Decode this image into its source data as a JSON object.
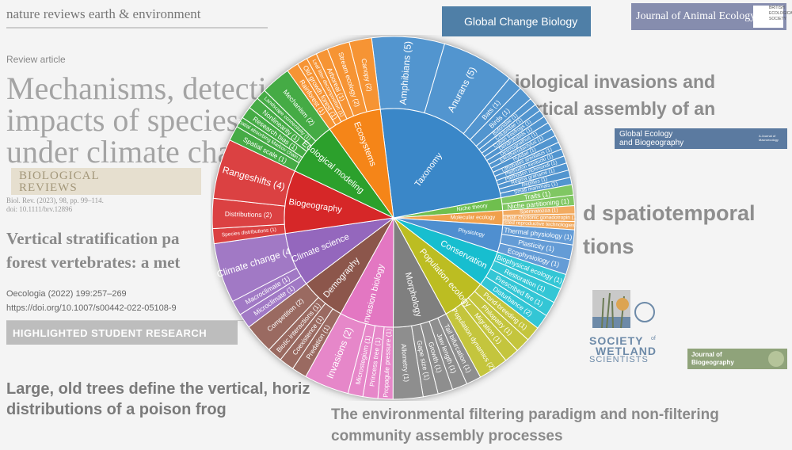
{
  "background": {
    "header_journal": "nature reviews earth & environment",
    "review_label": "Review article",
    "headline_lines": [
      "Mechanisms, detectio",
      "impacts of species r",
      "under climate cha"
    ],
    "bio_reviews_logo": [
      "BIOLOGICAL",
      "REVIEWS"
    ],
    "bio_reviews_citation": [
      "Biol. Rev. (2023), 98, pp. 99–114.",
      "doi: 10.1111/brv.12896"
    ],
    "vertical_title": [
      "Vertical stratification pa",
      "forest vertebrates: a met"
    ],
    "oecologia": [
      "Oecologia (2022) 199:257–269",
      "https://doi.org/10.1007/s00442-022-05108-9"
    ],
    "highlighted_badge": "HIGHLIGHTED STUDENT RESEARCH",
    "frog_title": [
      "Large, old trees define the vertical, horiz",
      "distributions of a poison frog"
    ],
    "gcb_logo": "Global Change Biology",
    "jae_logo": "Journal of Animal Ecology",
    "bes_logo": [
      "BRITISH",
      "ECOLOGICAL",
      "SOCIETY"
    ],
    "invasion_title": [
      "iological invasions and",
      "vertical assembly of an"
    ],
    "geb_logo": [
      "Global Ecology",
      "and Biogeography"
    ],
    "geb_small": "A Journal of Macroecology",
    "spatiotemporal_title": [
      "d spatiotemporal",
      "tions"
    ],
    "sws_logo": [
      "SOCIETY",
      "WETLAND",
      "SCIENTISTS"
    ],
    "sws_of": "of",
    "job_logo": [
      "Journal of",
      "Biogeography"
    ],
    "filter_title": [
      "The environmental filtering paradigm and non-filtering",
      "community assembly processes"
    ]
  },
  "colors": {
    "Taxonomy": "#3a87c8",
    "Ecosystems": "#f58518",
    "Ecological modeling": "#2ca02c",
    "Biogeography": "#d62728",
    "Climate science": "#9467bd",
    "Demography": "#8c564b",
    "Invasion biology": "#e377c2",
    "Morphology": "#7f7f7f",
    "Population ecology": "#bcbd22",
    "Conservation": "#17becf",
    "Physiology": "#4f8fd0",
    "Niche theory": "#6fbf4e",
    "Molecular ecology": "#f0a04c"
  },
  "chart_data": {
    "type": "sunburst",
    "inner": [
      {
        "label": "Taxonomy",
        "value": 18
      },
      {
        "label": "Niche theory",
        "value": 1.4
      },
      {
        "label": "Molecular ecology",
        "value": 1.6
      },
      {
        "label": "Physiology",
        "value": 3
      },
      {
        "label": "Conservation",
        "value": 4
      },
      {
        "label": "Population ecology",
        "value": 5
      },
      {
        "label": "Morphology",
        "value": 6
      },
      {
        "label": "Invasion biology",
        "value": 6
      },
      {
        "label": "Demography",
        "value": 5
      },
      {
        "label": "Climate science",
        "value": 6
      },
      {
        "label": "Biogeography",
        "value": 7
      },
      {
        "label": "Ecological modeling",
        "value": 6
      },
      {
        "label": "Ecosystems",
        "value": 6
      }
    ],
    "outer": [
      {
        "label": "Amphibians (5)",
        "parent": "Taxonomy",
        "value": 5
      },
      {
        "label": "Anurans (5)",
        "parent": "Taxonomy",
        "value": 5
      },
      {
        "label": "Bats (1)",
        "parent": "Taxonomy",
        "value": 1
      },
      {
        "label": "Birds (1)",
        "parent": "Taxonomy",
        "value": 1
      },
      {
        "label": "Bufonidae (1)",
        "parent": "Taxonomy",
        "value": 0.5
      },
      {
        "label": "Colubridae (1)",
        "parent": "Taxonomy",
        "value": 0.5
      },
      {
        "label": "Cuban treefrogs (1)",
        "parent": "Taxonomy",
        "value": 0.5
      },
      {
        "label": "Dendrobatids (1)",
        "parent": "Taxonomy",
        "value": 0.5
      },
      {
        "label": "Desmognathus (1)",
        "parent": "Taxonomy",
        "value": 0.5
      },
      {
        "label": "Eleutherodactylus (1)",
        "parent": "Taxonomy",
        "value": 0.5
      },
      {
        "label": "Hylidae (1)",
        "parent": "Taxonomy",
        "value": 0.5
      },
      {
        "label": "Lithobates areolatus (1)",
        "parent": "Taxonomy",
        "value": 0.5
      },
      {
        "label": "Plethodon kentucki (1)",
        "parent": "Taxonomy",
        "value": 0.5
      },
      {
        "label": "Plethodon richmondi (1)",
        "parent": "Taxonomy",
        "value": 0.5
      },
      {
        "label": "Regina grahamii (1)",
        "parent": "Taxonomy",
        "value": 0.5
      },
      {
        "label": "Reptiles (1)",
        "parent": "Taxonomy",
        "value": 0.5
      },
      {
        "label": "Small mammals (1)",
        "parent": "Taxonomy",
        "value": 0.5
      },
      {
        "label": "Traits (1)",
        "parent": "Niche theory",
        "value": 0.7
      },
      {
        "label": "Niche partitioning (1)",
        "parent": "Niche theory",
        "value": 0.7
      },
      {
        "label": "Spermatozoa (1)",
        "parent": "Molecular ecology",
        "value": 0.55
      },
      {
        "label": "Human chorionic gonadotropin (1)",
        "parent": "Molecular ecology",
        "value": 0.5
      },
      {
        "label": "Assisted reproductive technologies (1)",
        "parent": "Molecular ecology",
        "value": 0.55
      },
      {
        "label": "Thermal physiology (1)",
        "parent": "Physiology",
        "value": 1
      },
      {
        "label": "Plasticity (1)",
        "parent": "Physiology",
        "value": 1
      },
      {
        "label": "Ecophysiology (1)",
        "parent": "Physiology",
        "value": 1
      },
      {
        "label": "Biophysical ecology (1)",
        "parent": "Conservation",
        "value": 1
      },
      {
        "label": "Restoration (1)",
        "parent": "Conservation",
        "value": 1
      },
      {
        "label": "Prescribed fire (1)",
        "parent": "Conservation",
        "value": 1
      },
      {
        "label": "Disturbance (2)",
        "parent": "Conservation",
        "value": 1
      },
      {
        "label": "Pond-breeding (1)",
        "parent": "Population ecology",
        "value": 1
      },
      {
        "label": "Philopatry (1)",
        "parent": "Population ecology",
        "value": 1
      },
      {
        "label": "Migration (1)",
        "parent": "Population ecology",
        "value": 1
      },
      {
        "label": "Population dynamics (2)",
        "parent": "Population ecology",
        "value": 2
      },
      {
        "label": "Tail bifurcation (1)",
        "parent": "Morphology",
        "value": 1
      },
      {
        "label": "Jaw length (1)",
        "parent": "Morphology",
        "value": 1
      },
      {
        "label": "Growth (1)",
        "parent": "Morphology",
        "value": 1
      },
      {
        "label": "Gape size (1)",
        "parent": "Morphology",
        "value": 1
      },
      {
        "label": "Allometry (1)",
        "parent": "Morphology",
        "value": 2
      },
      {
        "label": "Propagule pressure (1)",
        "parent": "Invasion biology",
        "value": 1
      },
      {
        "label": "Princess tree (1)",
        "parent": "Invasion biology",
        "value": 1
      },
      {
        "label": "Microstegium (1)",
        "parent": "Invasion biology",
        "value": 1
      },
      {
        "label": "Invasions (2)",
        "parent": "Invasion biology",
        "value": 3
      },
      {
        "label": "Predation (1)",
        "parent": "Demography",
        "value": 1
      },
      {
        "label": "Coexistence (1)",
        "parent": "Demography",
        "value": 1
      },
      {
        "label": "Biotic interactions (1)",
        "parent": "Demography",
        "value": 1
      },
      {
        "label": "Competition (2)",
        "parent": "Demography",
        "value": 2
      },
      {
        "label": "Microclimate (1)",
        "parent": "Climate science",
        "value": 1
      },
      {
        "label": "Macroclimate (1)",
        "parent": "Climate science",
        "value": 1
      },
      {
        "label": "Climate change (4)",
        "parent": "Climate science",
        "value": 4
      },
      {
        "label": "Species distributions (1)",
        "parent": "Biogeography",
        "value": 1
      },
      {
        "label": "Distributions (2)",
        "parent": "Biogeography",
        "value": 2
      },
      {
        "label": "Rangeshifts (4)",
        "parent": "Biogeography",
        "value": 4
      },
      {
        "label": "Spatial scale (1)",
        "parent": "Ecological modeling",
        "value": 1
      },
      {
        "label": "Spatial absorbing Markov chain (1)",
        "parent": "Ecological modeling",
        "value": 0.7
      },
      {
        "label": "Research bias (1)",
        "parent": "Ecological modeling",
        "value": 0.8
      },
      {
        "label": "Nonlinearity (1)",
        "parent": "Ecological modeling",
        "value": 0.8
      },
      {
        "label": "Landscape connectivity (1)",
        "parent": "Ecological modeling",
        "value": 0.7
      },
      {
        "label": "Mechanism (2)",
        "parent": "Ecological modeling",
        "value": 2
      },
      {
        "label": "Rainforest (1)",
        "parent": "Ecosystems",
        "value": 0.8
      },
      {
        "label": "Old growth forest (1)",
        "parent": "Ecosystems",
        "value": 0.7
      },
      {
        "label": "Leaf litter decomposition (1)",
        "parent": "Ecosystems",
        "value": 0.7
      },
      {
        "label": "Arboreal (1)",
        "parent": "Ecosystems",
        "value": 0.8
      },
      {
        "label": "Stream ecology (2)",
        "parent": "Ecosystems",
        "value": 1.5
      },
      {
        "label": "Canopy (2)",
        "parent": "Ecosystems",
        "value": 1.5
      }
    ]
  }
}
